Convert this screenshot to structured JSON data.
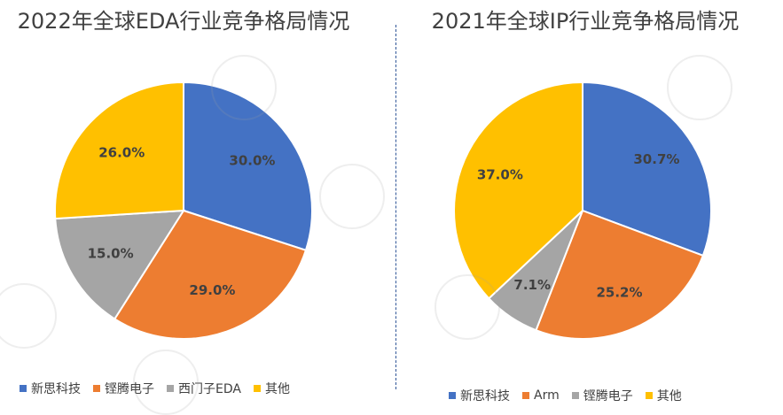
{
  "chart_data": [
    {
      "type": "pie",
      "title": "2022年全球EDA行业竞争格局情况",
      "categories": [
        "新思科技",
        "铿腾电子",
        "西门子EDA",
        "其他"
      ],
      "values": [
        30.0,
        29.0,
        15.0,
        26.0
      ],
      "labels": [
        "30.0%",
        "29.0%",
        "15.0%",
        "26.0%"
      ],
      "colors": [
        "#4472c4",
        "#ed7d31",
        "#a5a5a5",
        "#ffc000"
      ],
      "legend": "bottom"
    },
    {
      "type": "pie",
      "title": "2021年全球IP行业竞争格局情况",
      "categories": [
        "新思科技",
        "Arm",
        "铿腾电子",
        "其他"
      ],
      "values": [
        30.7,
        25.2,
        7.1,
        37.0
      ],
      "labels": [
        "30.7%",
        "25.2%",
        "7.1%",
        "37.0%"
      ],
      "colors": [
        "#4472c4",
        "#ed7d31",
        "#a5a5a5",
        "#ffc000"
      ],
      "legend": "bottom"
    }
  ]
}
